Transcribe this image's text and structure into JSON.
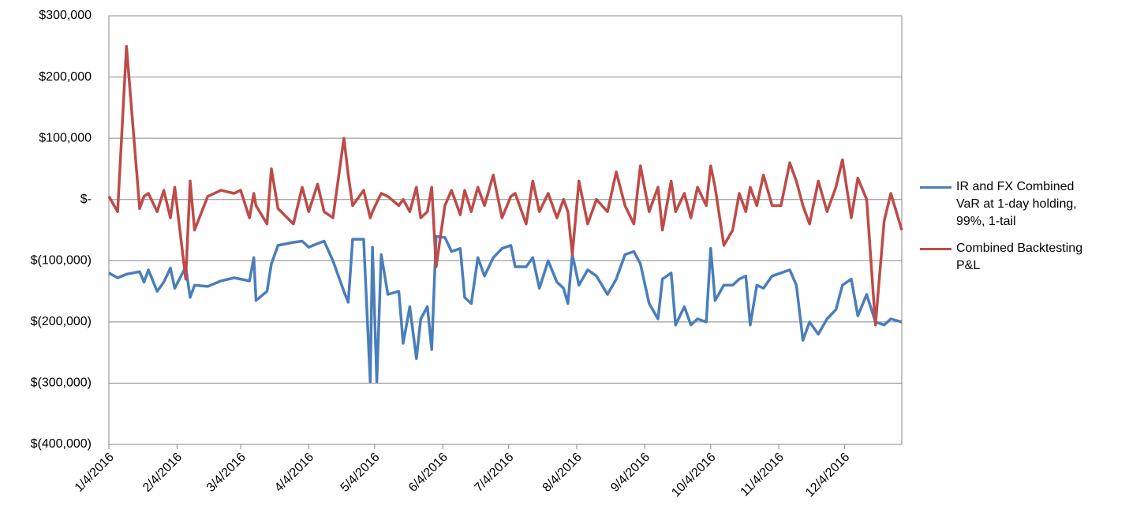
{
  "chart_data": {
    "type": "line",
    "x": [
      "1/4/2016",
      "1/8/2016",
      "1/12/2016",
      "1/18/2016",
      "1/20/2016",
      "1/22/2016",
      "1/26/2016",
      "1/29/2016",
      "2/1/2016",
      "2/3/2016",
      "2/8/2016",
      "2/10/2016",
      "2/12/2016",
      "2/18/2016",
      "2/24/2016",
      "3/1/2016",
      "3/4/2016",
      "3/8/2016",
      "3/10/2016",
      "3/11/2016",
      "3/16/2016",
      "3/18/2016",
      "3/21/2016",
      "3/28/2016",
      "4/1/2016",
      "4/4/2016",
      "4/8/2016",
      "4/11/2016",
      "4/15/2016",
      "4/20/2016",
      "4/22/2016",
      "4/24/2016",
      "4/29/2016",
      "5/2/2016",
      "5/3/2016",
      "5/5/2016",
      "5/7/2016",
      "5/10/2016",
      "5/15/2016",
      "5/17/2016",
      "5/20/2016",
      "5/23/2016",
      "5/25/2016",
      "5/28/2016",
      "5/30/2016",
      "6/1/2016",
      "6/5/2016",
      "6/8/2016",
      "6/12/2016",
      "6/14/2016",
      "6/17/2016",
      "6/20/2016",
      "6/23/2016",
      "6/27/2016",
      "7/1/2016",
      "7/5/2016",
      "7/7/2016",
      "7/12/2016",
      "7/15/2016",
      "7/18/2016",
      "7/22/2016",
      "7/26/2016",
      "7/29/2016",
      "7/31/2016",
      "8/2/2016",
      "8/5/2016",
      "8/9/2016",
      "8/13/2016",
      "8/18/2016",
      "8/22/2016",
      "8/26/2016",
      "8/30/2016",
      "9/2/2016",
      "9/6/2016",
      "9/10/2016",
      "9/12/2016",
      "9/16/2016",
      "9/18/2016",
      "9/22/2016",
      "9/25/2016",
      "9/28/2016",
      "10/2/2016",
      "10/4/2016",
      "10/6/2016",
      "10/10/2016",
      "10/14/2016",
      "10/17/2016",
      "10/20/2016",
      "10/22/2016",
      "10/25/2016",
      "10/28/2016",
      "11/1/2016",
      "11/5/2016",
      "11/9/2016",
      "11/12/2016",
      "11/15/2016",
      "11/18/2016",
      "11/22/2016",
      "11/26/2016",
      "11/30/2016",
      "12/3/2016",
      "12/7/2016",
      "12/10/2016",
      "12/14/2016",
      "12/18/2016",
      "12/22/2016",
      "12/25/2016",
      "12/30/2016"
    ],
    "series": [
      {
        "name": "IR and FX Combined VaR at 1-day holding, 99%, 1-tail",
        "color": "#4a7ebb",
        "values": [
          -120000,
          -128000,
          -122000,
          -118000,
          -135000,
          -115000,
          -150000,
          -135000,
          -112000,
          -145000,
          -110000,
          -160000,
          -140000,
          -142000,
          -133000,
          -128000,
          -130000,
          -133000,
          -95000,
          -165000,
          -150000,
          -105000,
          -75000,
          -70000,
          -68000,
          -78000,
          -72000,
          -68000,
          -100000,
          -150000,
          -168000,
          -65000,
          -65000,
          -298000,
          -78000,
          -298000,
          -90000,
          -155000,
          -150000,
          -235000,
          -175000,
          -260000,
          -195000,
          -175000,
          -245000,
          -60000,
          -62000,
          -85000,
          -80000,
          -160000,
          -170000,
          -95000,
          -125000,
          -95000,
          -80000,
          -75000,
          -110000,
          -110000,
          -95000,
          -145000,
          -100000,
          -135000,
          -145000,
          -170000,
          -90000,
          -140000,
          -115000,
          -125000,
          -155000,
          -130000,
          -90000,
          -85000,
          -105000,
          -170000,
          -195000,
          -130000,
          -120000,
          -205000,
          -175000,
          -205000,
          -195000,
          -200000,
          -80000,
          -165000,
          -140000,
          -140000,
          -130000,
          -125000,
          -205000,
          -140000,
          -145000,
          -125000,
          -120000,
          -115000,
          -140000,
          -230000,
          -200000,
          -220000,
          -195000,
          -180000,
          -140000,
          -130000,
          -190000,
          -155000,
          -200000,
          -205000,
          -195000,
          -200000
        ]
      },
      {
        "name": "Combined Backtesting P&L",
        "color": "#be4b48",
        "values": [
          5000,
          -20000,
          250000,
          -15000,
          5000,
          10000,
          -20000,
          15000,
          -30000,
          20000,
          -130000,
          30000,
          -50000,
          5000,
          15000,
          10000,
          15000,
          -30000,
          10000,
          -10000,
          -40000,
          50000,
          -15000,
          -40000,
          20000,
          -20000,
          25000,
          -20000,
          -30000,
          100000,
          40000,
          -10000,
          15000,
          -30000,
          -20000,
          -5000,
          10000,
          5000,
          -10000,
          0,
          -20000,
          20000,
          -30000,
          -20000,
          20000,
          -110000,
          -10000,
          15000,
          -25000,
          15000,
          -20000,
          20000,
          -10000,
          40000,
          -30000,
          5000,
          10000,
          -40000,
          30000,
          -20000,
          10000,
          -30000,
          0,
          -20000,
          -90000,
          30000,
          -40000,
          0,
          -20000,
          45000,
          -10000,
          -40000,
          55000,
          -20000,
          20000,
          -50000,
          30000,
          -20000,
          10000,
          -30000,
          20000,
          -10000,
          55000,
          20000,
          -75000,
          -50000,
          10000,
          -20000,
          20000,
          -10000,
          40000,
          -10000,
          -10000,
          60000,
          30000,
          -10000,
          -40000,
          30000,
          -20000,
          20000,
          65000,
          -30000,
          35000,
          0,
          -205000,
          -35000,
          10000,
          -50000
        ]
      }
    ],
    "xlim": [
      "1/4/2016",
      "12/30/2016"
    ],
    "xticks": [
      "1/4/2016",
      "2/4/2016",
      "3/4/2016",
      "4/4/2016",
      "5/4/2016",
      "6/4/2016",
      "7/4/2016",
      "8/4/2016",
      "9/4/2016",
      "10/4/2016",
      "11/4/2016",
      "12/4/2016"
    ],
    "ylim": [
      -400000,
      300000
    ],
    "yticks": [
      {
        "value": -400000,
        "label": "$(400,000)"
      },
      {
        "value": -300000,
        "label": "$(300,000)"
      },
      {
        "value": -200000,
        "label": "$(200,000)"
      },
      {
        "value": -100000,
        "label": "$(100,000)"
      },
      {
        "value": 0,
        "label": "$-"
      },
      {
        "value": 100000,
        "label": "$100,000"
      },
      {
        "value": 200000,
        "label": "$200,000"
      },
      {
        "value": 300000,
        "label": "$300,000"
      }
    ],
    "grid": true,
    "legend": "right"
  }
}
